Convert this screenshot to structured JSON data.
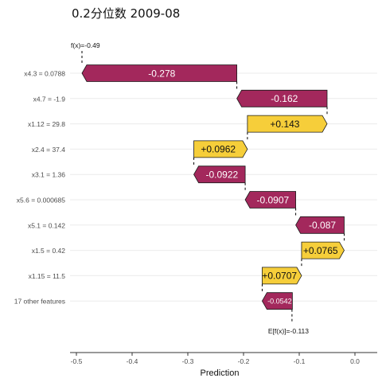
{
  "title": "0.2分位数 2009-08",
  "chart_data": {
    "type": "waterfall",
    "title": "0.2分位数 2009-08",
    "xlabel": "Prediction",
    "ylabel": "",
    "xlim": [
      -0.51,
      0.02
    ],
    "x_ticks": [
      -0.5,
      -0.4,
      -0.3,
      -0.2,
      -0.1,
      0.0
    ],
    "x_tick_labels": [
      "-0.5",
      "-0.4",
      "-0.3",
      "-0.2",
      "-0.1",
      "0.0"
    ],
    "base_value": -0.113,
    "base_label": "E[f(x)]=-0.113",
    "output_value": -0.49,
    "output_label": "f(x)=-0.49",
    "grid": "horizontal",
    "colors": {
      "negative": "#A3285C",
      "positive": "#F6CE3A",
      "stroke": "#1a1a1a",
      "grid": "#ebebeb",
      "axis": "#333333"
    },
    "bars": [
      {
        "feature": "x4.3 = 0.0788",
        "value": -0.278,
        "label": "-0.278"
      },
      {
        "feature": "x4.7 = -1.9",
        "value": -0.162,
        "label": "-0.162"
      },
      {
        "feature": "x1.12 = 29.8",
        "value": 0.143,
        "label": "+0.143"
      },
      {
        "feature": "x2.4 = 37.4",
        "value": 0.0962,
        "label": "+0.0962"
      },
      {
        "feature": "x3.1 = 1.36",
        "value": -0.0922,
        "label": "-0.0922"
      },
      {
        "feature": "x5.6 = 0.000685",
        "value": -0.0907,
        "label": "-0.0907"
      },
      {
        "feature": "x5.1 = 0.142",
        "value": -0.087,
        "label": "-0.087"
      },
      {
        "feature": "x1.5 = 0.42",
        "value": 0.0765,
        "label": "+0.0765"
      },
      {
        "feature": "x1.15 = 11.5",
        "value": 0.0707,
        "label": "+0.0707"
      },
      {
        "feature": "17 other features",
        "value": -0.0542,
        "label": "-0.0542"
      }
    ]
  }
}
